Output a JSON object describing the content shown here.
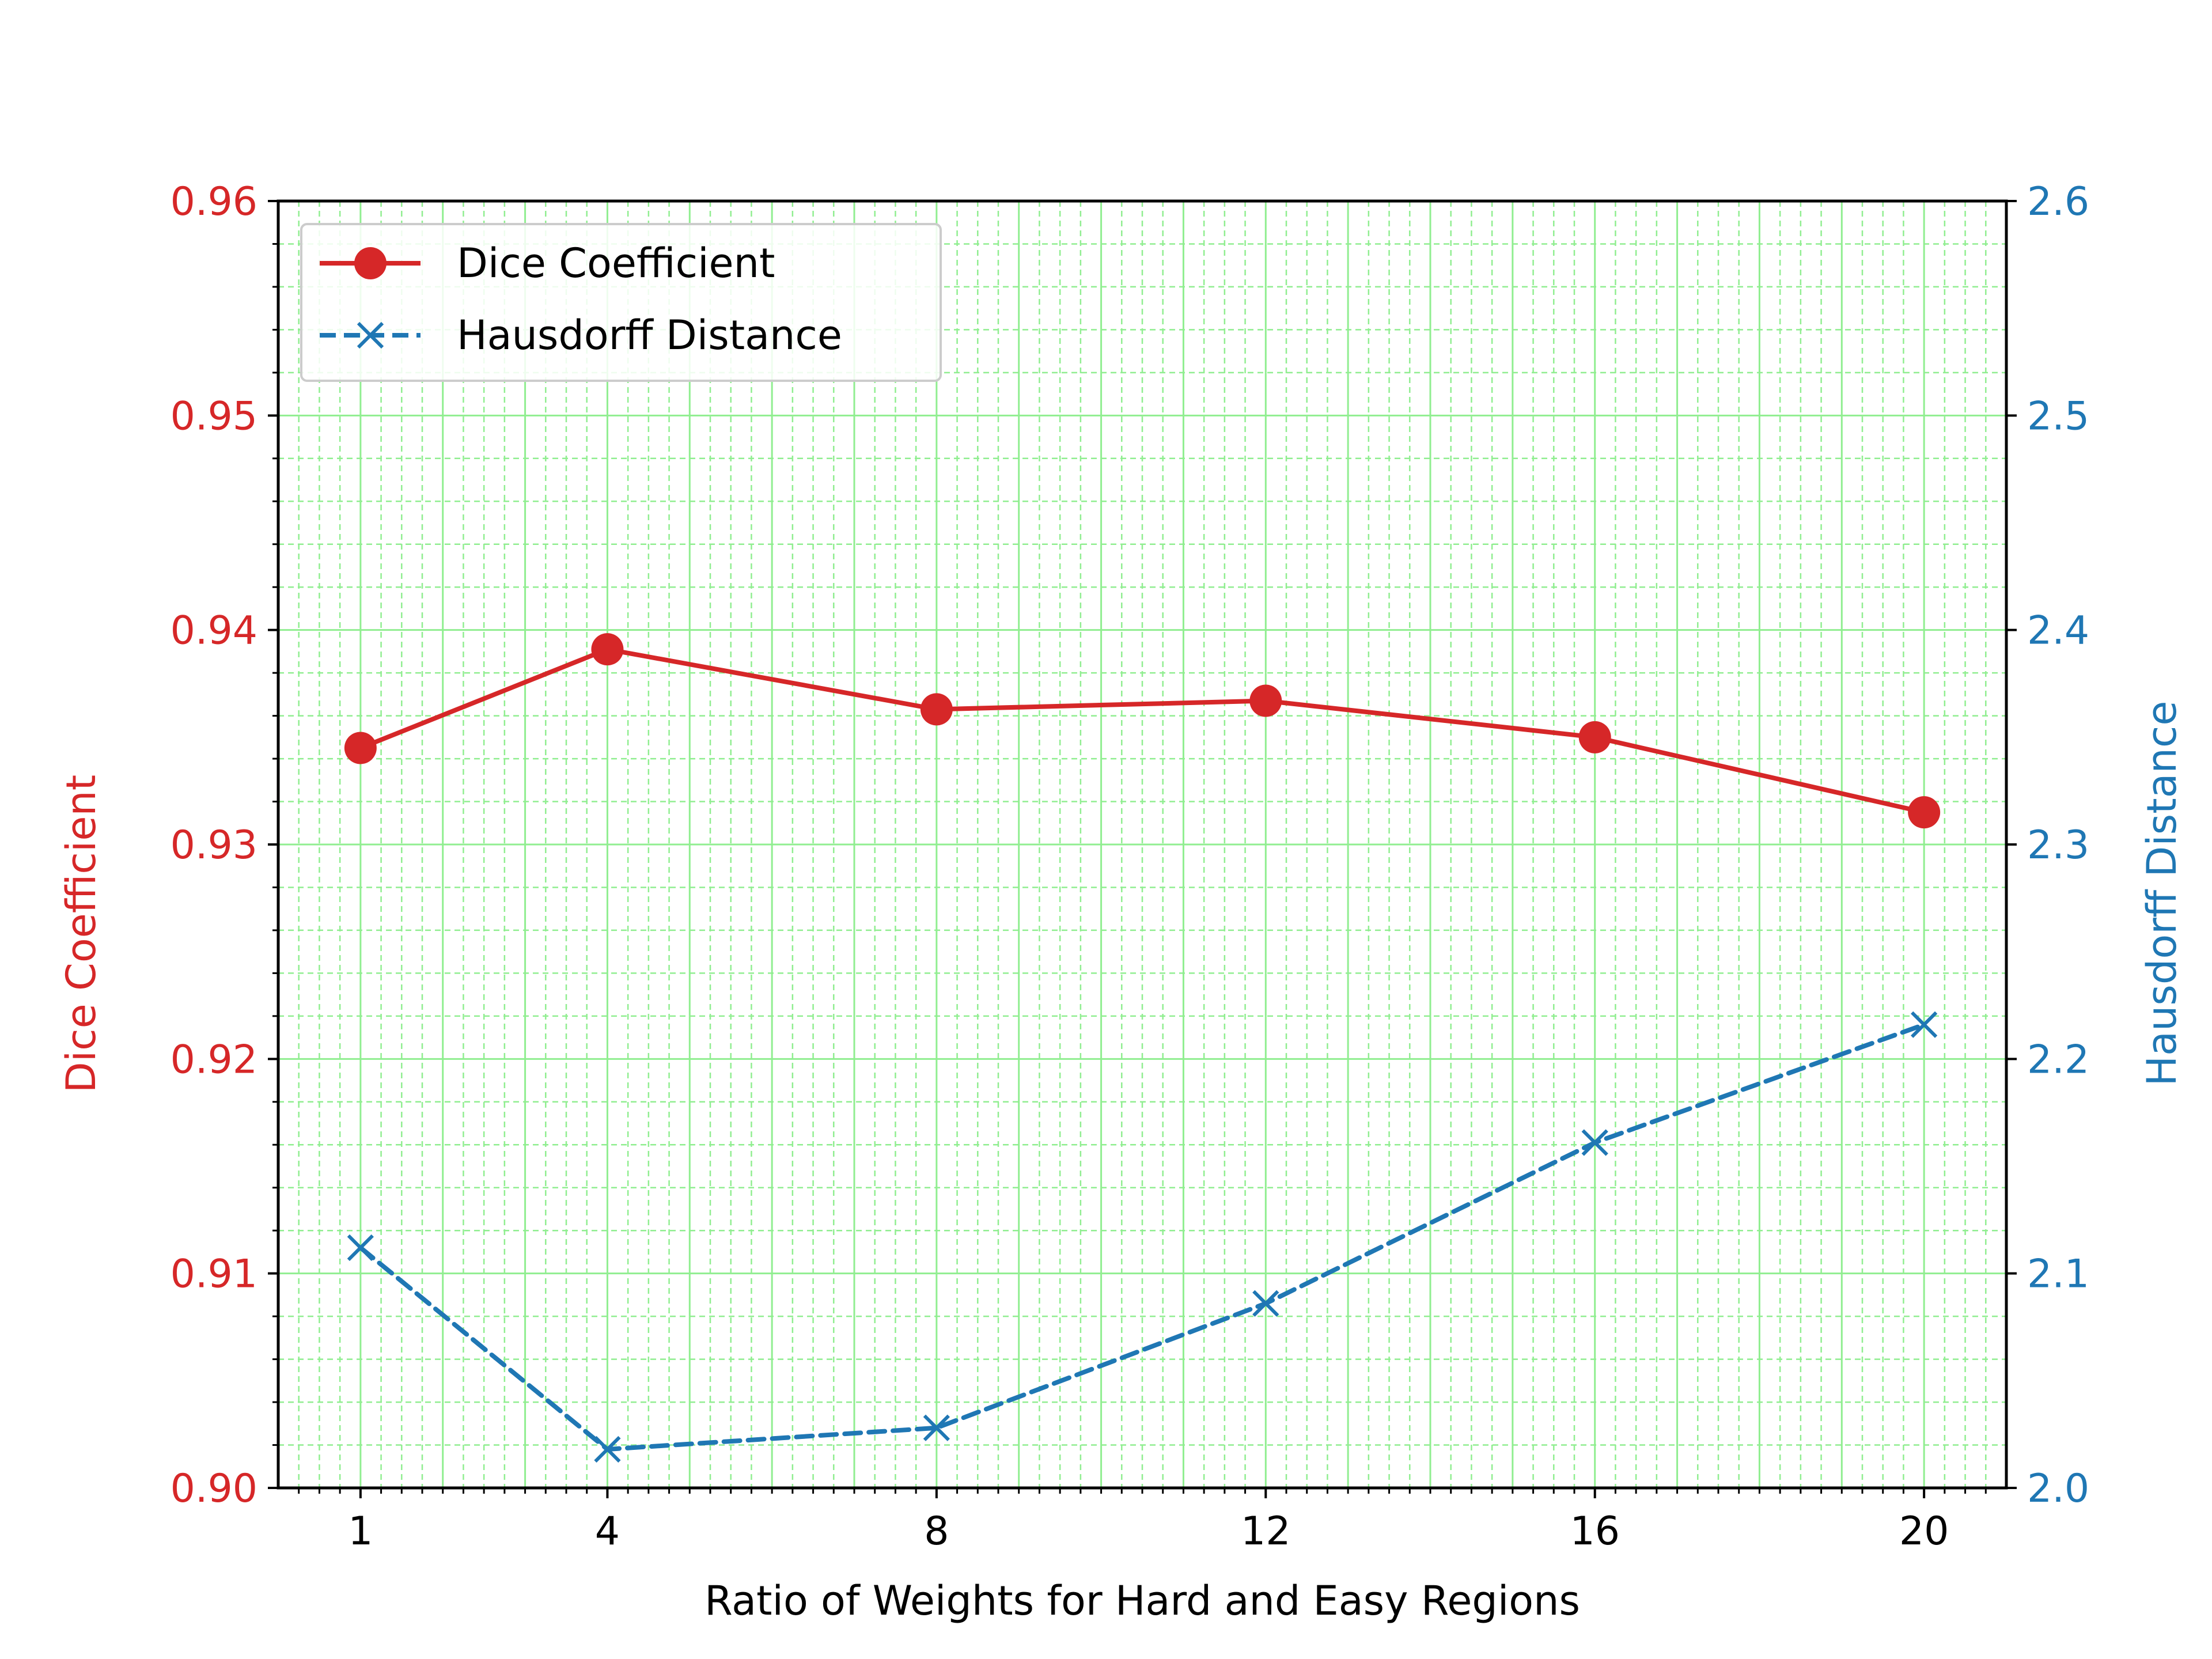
{
  "chart_data": {
    "type": "line",
    "x": [
      1,
      4,
      8,
      12,
      16,
      20
    ],
    "x_tick_labels": [
      "1",
      "4",
      "8",
      "12",
      "16",
      "20"
    ],
    "xlabel": "Ratio of Weights for Hard and Easy Regions",
    "ylabel_left": "Dice Coefficient",
    "ylabel_right": "Hausdorff Distance",
    "xlim": [
      0,
      21
    ],
    "ylim_left": [
      0.9,
      0.96
    ],
    "ylim_right": [
      2.0,
      2.6
    ],
    "y_ticks_left": [
      "0.90",
      "0.91",
      "0.92",
      "0.93",
      "0.94",
      "0.95",
      "0.96"
    ],
    "y_ticks_right": [
      "2.0",
      "2.1",
      "2.2",
      "2.3",
      "2.4",
      "2.5",
      "2.6"
    ],
    "grid": true,
    "legend_position": "top-left",
    "series": [
      {
        "name": "Dice Coefficient",
        "axis": "left",
        "values": [
          0.9345,
          0.9391,
          0.9363,
          0.9367,
          0.935,
          0.9315
        ],
        "color": "#d62728",
        "marker": "circle",
        "line_style": "solid"
      },
      {
        "name": "Hausdorff Distance",
        "axis": "right",
        "values": [
          2.112,
          2.018,
          2.028,
          2.086,
          2.161,
          2.216
        ],
        "color": "#1f77b4",
        "marker": "x",
        "line_style": "dashed"
      }
    ],
    "colors": {
      "left_axis_text": "#d62728",
      "right_axis_text": "#1f77b4",
      "grid_major": "#90ee90",
      "grid_minor": "#90ee90"
    }
  }
}
